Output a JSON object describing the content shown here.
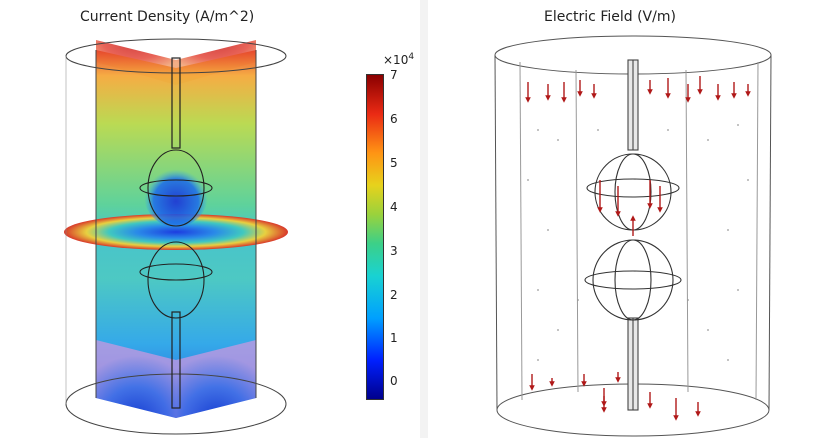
{
  "left_panel": {
    "title": "Current Density (A/m^2)",
    "colorbar": {
      "multiplier_base": "×10",
      "multiplier_exp": "4",
      "ticks": [
        "7",
        "6",
        "5",
        "4",
        "3",
        "2",
        "1",
        "0"
      ],
      "colors": [
        "#00008c",
        "#0020ff",
        "#00a0ff",
        "#19d2d2",
        "#3cd088",
        "#9ad23c",
        "#e7d21c",
        "#ff9414",
        "#ea2a14",
        "#8a0000"
      ]
    }
  },
  "right_panel": {
    "title": "Electric Field (V/m)",
    "arrow_color": "#b01818"
  }
}
